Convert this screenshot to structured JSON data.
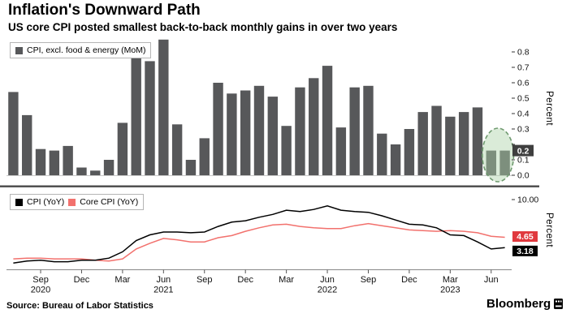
{
  "header": {
    "title": "Inflation's Downward Path",
    "subtitle": "US core CPI posted smallest back-to-back monthly gains in over two years"
  },
  "labels": {
    "percent": "Percent"
  },
  "footer": {
    "source": "Source: Bureau of Labor Statistics",
    "brand": "Bloomberg"
  },
  "colors": {
    "bar": "#57585a",
    "cpi_line": "#000000",
    "core_line": "#f2716d",
    "core_label_bg": "#e0393e",
    "cpi_label_bg": "#000000",
    "mom_label_bg": "#3f3f3f",
    "highlight_fill": "rgba(173,210,168,0.45)",
    "highlight_stroke": "#6f9a6f",
    "divider": "#4a4a4a",
    "axis_text": "#111111"
  },
  "months": [
    "Jul 2020",
    "Aug 2020",
    "Sep 2020",
    "Oct 2020",
    "Nov 2020",
    "Dec 2020",
    "Jan 2021",
    "Feb 2021",
    "Mar 2021",
    "Apr 2021",
    "May 2021",
    "Jun 2021",
    "Jul 2021",
    "Aug 2021",
    "Sep 2021",
    "Oct 2021",
    "Nov 2021",
    "Dec 2021",
    "Jan 2022",
    "Feb 2022",
    "Mar 2022",
    "Apr 2022",
    "May 2022",
    "Jun 2022",
    "Jul 2022",
    "Aug 2022",
    "Sep 2022",
    "Oct 2022",
    "Nov 2022",
    "Dec 2022",
    "Jan 2023",
    "Feb 2023",
    "Mar 2023",
    "Apr 2023",
    "May 2023",
    "Jun 2023",
    "Jul 2023"
  ],
  "chart_data": [
    {
      "type": "bar",
      "legend": "CPI, excl. food & energy (MoM)",
      "ylabel": "Percent",
      "ylim": [
        0,
        0.8
      ],
      "yticks": [
        0.8,
        0.7,
        0.6,
        0.5,
        0.4,
        0.3,
        0.2,
        0.1,
        0.0
      ],
      "values": [
        0.54,
        0.39,
        0.17,
        0.16,
        0.19,
        0.05,
        0.03,
        0.1,
        0.34,
        0.85,
        0.74,
        0.88,
        0.33,
        0.1,
        0.24,
        0.6,
        0.53,
        0.55,
        0.58,
        0.51,
        0.32,
        0.57,
        0.63,
        0.71,
        0.31,
        0.57,
        0.58,
        0.27,
        0.2,
        0.3,
        0.41,
        0.45,
        0.38,
        0.41,
        0.44,
        0.16,
        0.16
      ],
      "annotation": {
        "label": "0.2",
        "replaces_tick": 0.2,
        "highlight_last_n": 2
      }
    },
    {
      "type": "line",
      "ylabel": "Percent",
      "ylim": [
        0,
        10
      ],
      "yticks": [
        {
          "value": 10,
          "label": "10.00"
        }
      ],
      "series": [
        {
          "name": "CPI (YoY)",
          "color": "#000000",
          "label_bg": "#000000",
          "end_label": "3.18",
          "values": [
            1.0,
            1.3,
            1.4,
            1.2,
            1.2,
            1.4,
            1.4,
            1.7,
            2.6,
            4.2,
            5.0,
            5.4,
            5.4,
            5.3,
            5.4,
            6.2,
            6.8,
            7.0,
            7.5,
            7.9,
            8.5,
            8.3,
            8.6,
            9.1,
            8.5,
            8.3,
            8.2,
            7.7,
            7.1,
            6.5,
            6.4,
            6.0,
            5.0,
            4.9,
            4.0,
            3.0,
            3.18
          ]
        },
        {
          "name": "Core CPI (YoY)",
          "color": "#f2716d",
          "label_bg": "#e0393e",
          "end_label": "4.65",
          "values": [
            1.6,
            1.7,
            1.7,
            1.6,
            1.6,
            1.6,
            1.4,
            1.3,
            1.6,
            3.0,
            3.8,
            4.5,
            4.3,
            4.0,
            4.0,
            4.6,
            4.9,
            5.5,
            6.0,
            6.4,
            6.5,
            6.2,
            6.0,
            5.9,
            5.9,
            6.3,
            6.6,
            6.3,
            6.0,
            5.7,
            5.6,
            5.5,
            5.6,
            5.5,
            5.3,
            4.8,
            4.65
          ]
        }
      ]
    }
  ],
  "xaxis": {
    "ticks": [
      {
        "i": 2,
        "m": "Sep",
        "y": "2020"
      },
      {
        "i": 5,
        "m": "Dec"
      },
      {
        "i": 8,
        "m": "Mar"
      },
      {
        "i": 11,
        "m": "Jun",
        "y": "2021"
      },
      {
        "i": 14,
        "m": "Sep"
      },
      {
        "i": 17,
        "m": "Dec"
      },
      {
        "i": 20,
        "m": "Mar"
      },
      {
        "i": 23,
        "m": "Jun",
        "y": "2022"
      },
      {
        "i": 26,
        "m": "Sep"
      },
      {
        "i": 29,
        "m": "Dec"
      },
      {
        "i": 32,
        "m": "Mar",
        "y": "2023"
      },
      {
        "i": 35,
        "m": "Jun"
      }
    ]
  }
}
